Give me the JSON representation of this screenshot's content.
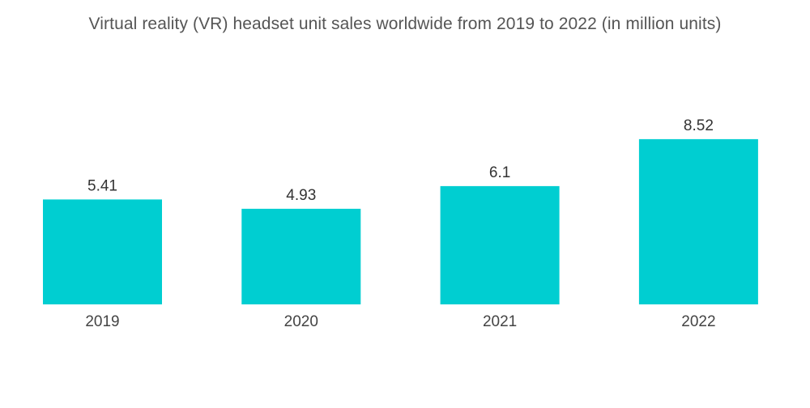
{
  "chart_data": {
    "type": "bar",
    "title": "Virtual reality (VR) headset unit sales worldwide from 2019 to 2022 (in million units)",
    "categories": [
      "2019",
      "2020",
      "2021",
      "2022"
    ],
    "values": [
      5.41,
      4.93,
      6.1,
      8.52
    ],
    "value_labels": [
      "5.41",
      "4.93",
      "6.1",
      "8.52"
    ],
    "xlabel": "",
    "ylabel": "",
    "ylim": [
      0,
      9
    ],
    "grid": false,
    "bar_color": "#00CED1"
  }
}
